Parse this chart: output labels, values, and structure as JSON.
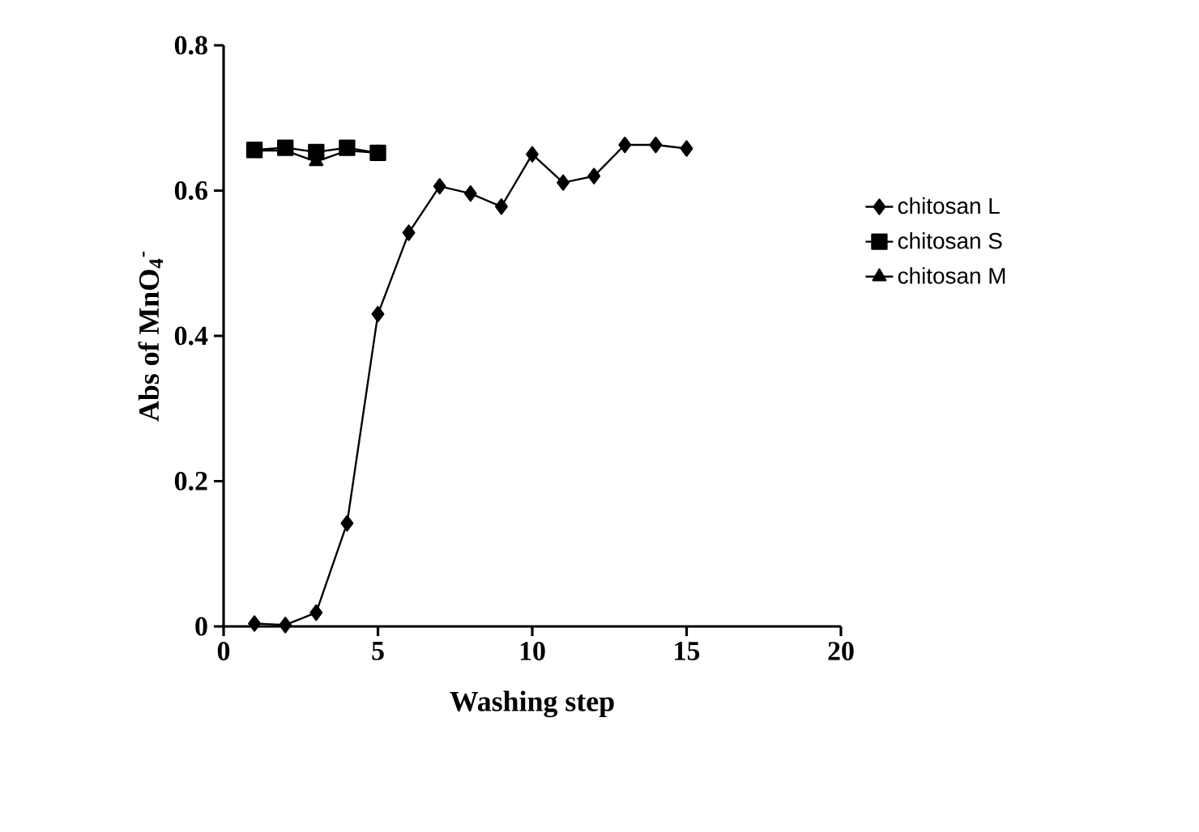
{
  "chart_data": {
    "type": "line",
    "xlabel": "Washing step",
    "ylabel": "Abs of MnO$_{4}$$^{-}$",
    "xlim": [
      0,
      20
    ],
    "xticks": [
      0,
      5,
      10,
      15,
      20
    ],
    "ylim": [
      0,
      0.8
    ],
    "yticks": [
      0,
      0.2,
      0.4,
      0.6,
      0.8
    ],
    "legend": "right",
    "grid": false,
    "line_style": "solid",
    "series": [
      {
        "name": "chitosan L",
        "color": "#000000",
        "marker": "diamond",
        "x": [
          1,
          2,
          3,
          4,
          5,
          6,
          7,
          8,
          9,
          10,
          11,
          12,
          13,
          14,
          15
        ],
        "values": [
          0.004,
          0.002,
          0.019,
          0.142,
          0.43,
          0.542,
          0.606,
          0.596,
          0.578,
          0.65,
          0.611,
          0.62,
          0.663,
          0.663,
          0.658
        ]
      },
      {
        "name": "chitosan S",
        "color": "#000000",
        "marker": "square",
        "x": [
          1,
          2,
          3,
          4,
          5
        ],
        "values": [
          0.656,
          0.659,
          0.653,
          0.659,
          0.652
        ]
      },
      {
        "name": "chitosan M",
        "color": "#000000",
        "marker": "triangle",
        "x": [
          1,
          2,
          3,
          4,
          5
        ],
        "values": [
          0.655,
          0.655,
          0.64,
          0.655,
          0.652
        ]
      }
    ]
  }
}
